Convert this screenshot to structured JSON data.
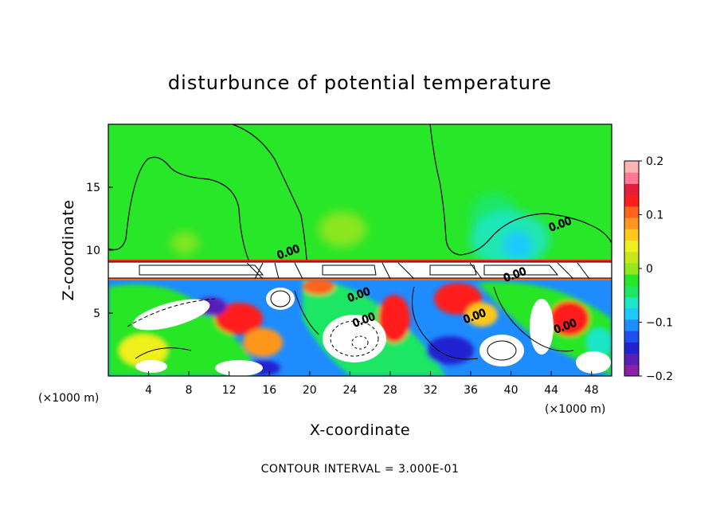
{
  "chart_data": {
    "type": "heatmap",
    "title": "disturbunce of potential temperature",
    "xlabel": "X-coordinate",
    "ylabel": "Z-coordinate",
    "x_unit": "(×1000 m)",
    "x_unit_right": "(×1000 m)",
    "xlim": [
      0,
      50
    ],
    "ylim": [
      0,
      20
    ],
    "x_ticks": [
      4,
      8,
      12,
      16,
      20,
      24,
      28,
      32,
      36,
      40,
      44,
      48
    ],
    "y_ticks": [
      5,
      10,
      15
    ],
    "colorbar": {
      "range": [
        -0.2,
        0.2
      ],
      "ticks": [
        0.2,
        0.1,
        0,
        -0.1,
        -0.2
      ],
      "tick_labels": [
        "0.2",
        "0.1",
        "0",
        "−0.1",
        "−0.2"
      ],
      "colors": [
        "#8a1fa8",
        "#5a1fb8",
        "#2222d0",
        "#1e50f0",
        "#1e8cff",
        "#1ec8ff",
        "#1ee6c8",
        "#1ee664",
        "#28e628",
        "#96e61e",
        "#c8e61e",
        "#f0f01e",
        "#ffc81e",
        "#ff961e",
        "#ff641e",
        "#ff1e1e",
        "#e61e3c",
        "#ff7896",
        "#ffb4b4"
      ]
    },
    "contour_labels": [
      {
        "text": "0.00",
        "x": 18,
        "z": 9.6
      },
      {
        "text": "0.00",
        "x": 25,
        "z": 6.2
      },
      {
        "text": "0.00",
        "x": 25.5,
        "z": 4.2
      },
      {
        "text": "0.00",
        "x": 36.5,
        "z": 4.5
      },
      {
        "text": "0.00",
        "x": 40.5,
        "z": 7.8
      },
      {
        "text": "0.00",
        "x": 45,
        "z": 11.8
      },
      {
        "text": "0.00",
        "x": 45.5,
        "z": 3.7
      }
    ],
    "grid": false,
    "legend": "right",
    "footer": "CONTOUR INTERVAL = 3.000E-01"
  }
}
